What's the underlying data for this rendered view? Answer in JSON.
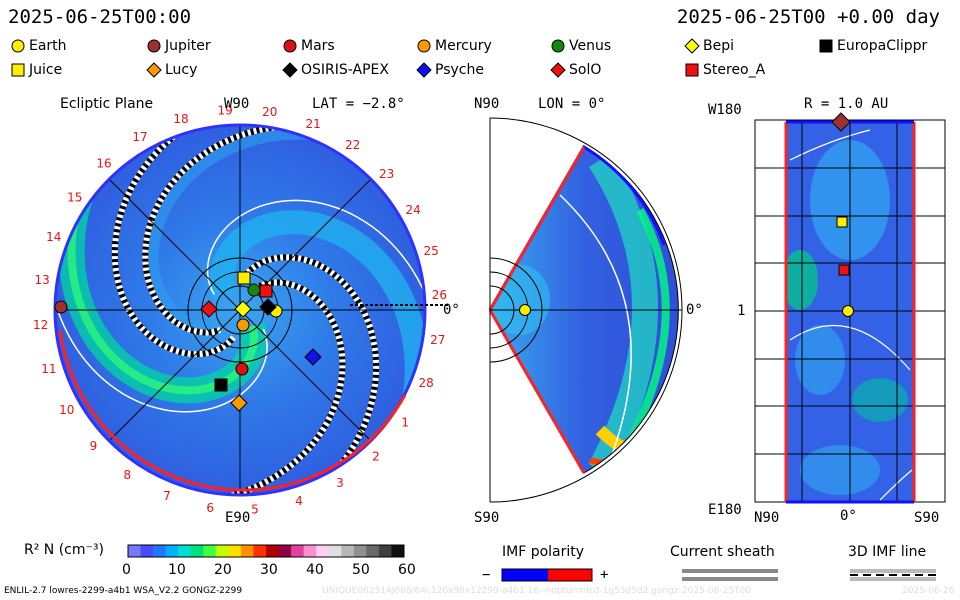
{
  "header": {
    "timestamp": "2025-06-25T00:00",
    "run_time": "2025-06-25T00 +0.00 day"
  },
  "legend": [
    {
      "name": "Earth",
      "shape": "circle",
      "color": "#ffee00"
    },
    {
      "name": "Jupiter",
      "shape": "circle",
      "color": "#a03030"
    },
    {
      "name": "Mars",
      "shape": "circle",
      "color": "#dd1111"
    },
    {
      "name": "Mercury",
      "shape": "circle",
      "color": "#ff9900"
    },
    {
      "name": "Venus",
      "shape": "circle",
      "color": "#118811"
    },
    {
      "name": "Bepi",
      "shape": "diamond",
      "color": "#ffff00"
    },
    {
      "name": "EuropaClippr",
      "shape": "square",
      "color": "#000000"
    },
    {
      "name": "Juice",
      "shape": "square",
      "color": "#ffee00"
    },
    {
      "name": "Lucy",
      "shape": "diamond",
      "color": "#ff9900"
    },
    {
      "name": "OSIRIS-APEX",
      "shape": "diamond",
      "color": "#000000"
    },
    {
      "name": "Psyche",
      "shape": "diamond",
      "color": "#1111ee"
    },
    {
      "name": "SolO",
      "shape": "diamond",
      "color": "#ee1111"
    },
    {
      "name": "Stereo_A",
      "shape": "square",
      "color": "#ee1111"
    }
  ],
  "panels": {
    "ecliptic": {
      "title": "Ecliptic Plane",
      "top_label": "W90",
      "lat_label": "LAT = −2.8°",
      "bottom_label": "E90",
      "right_label": "0°",
      "carrington_ticks": [
        "10",
        "11",
        "12",
        "13",
        "14",
        "15",
        "16",
        "17",
        "18",
        "19",
        "20",
        "21",
        "22",
        "23",
        "24",
        "25",
        "26",
        "27",
        "28",
        "1",
        "2",
        "3",
        "4",
        "5",
        "6",
        "7",
        "8",
        "9"
      ]
    },
    "meridional": {
      "top_label": "N90",
      "lon_label": "LON = 0°",
      "bottom_label": "S90",
      "right_label": "0°"
    },
    "lonlat": {
      "top_label": "W180",
      "r_label": "R = 1.0 AU",
      "mid_label": "1",
      "bottom_label": "E180",
      "x_labels": [
        "N90",
        "0°",
        "S90"
      ]
    }
  },
  "colorbar": {
    "label": "R² N (cm⁻³)",
    "ticks": [
      "0",
      "10",
      "20",
      "30",
      "40",
      "50",
      "60"
    ],
    "colors": [
      "#7878ff",
      "#4a4aff",
      "#1f78ff",
      "#00b0ff",
      "#00e0d0",
      "#00e080",
      "#40ff40",
      "#c0ff00",
      "#ffe000",
      "#ff9000",
      "#ff3000",
      "#b00000",
      "#900040",
      "#e040a0",
      "#ff90d0",
      "#ffd0f0",
      "#e0e0e0",
      "#b8b8b8",
      "#909090",
      "#686868",
      "#404040",
      "#101010"
    ]
  },
  "imf": {
    "label": "IMF polarity",
    "minus": "−",
    "plus": "+",
    "neg_color": "#0000ff",
    "pos_color": "#ff0000"
  },
  "sheath": {
    "label": "Current sheath"
  },
  "imf3d": {
    "label": "3D IMF line"
  },
  "footer": {
    "model": "ENLIL-2.7 lowres-2299-a4b1 WSA_V2.2 GONGZ-2299",
    "run_id": "UNIQUE062514J008/64c120x90x12299-a4b1 16--noptumnlcd-1g53d5d2.gongz-2025-06-25T00",
    "date": "2025-06-26"
  }
}
